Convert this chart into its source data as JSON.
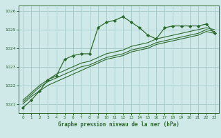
{
  "title": "Graphe pression niveau de la mer (hPa)",
  "bg_color": "#cfe8e8",
  "grid_color": "#aacccc",
  "line_color": "#2d6a2d",
  "marker_color": "#2d6a2d",
  "xlim": [
    -0.5,
    23.5
  ],
  "ylim": [
    1020.5,
    1026.3
  ],
  "yticks": [
    1021,
    1022,
    1023,
    1024,
    1025,
    1026
  ],
  "xticks": [
    0,
    1,
    2,
    3,
    4,
    5,
    6,
    7,
    8,
    9,
    10,
    11,
    12,
    13,
    14,
    15,
    16,
    17,
    18,
    19,
    20,
    21,
    22,
    23
  ],
  "series1": [
    1020.8,
    1021.2,
    1021.7,
    1022.3,
    1022.5,
    1023.4,
    1023.6,
    1023.7,
    1023.7,
    1025.1,
    1025.4,
    1025.5,
    1025.7,
    1025.4,
    1025.1,
    1024.7,
    1024.5,
    1025.1,
    1025.2,
    1025.2,
    1025.2,
    1025.2,
    1025.3,
    1024.8
  ],
  "series2": [
    1021.0,
    1021.4,
    1021.7,
    1022.0,
    1022.2,
    1022.4,
    1022.6,
    1022.8,
    1023.0,
    1023.2,
    1023.4,
    1023.5,
    1023.6,
    1023.8,
    1023.9,
    1024.0,
    1024.2,
    1024.3,
    1024.4,
    1024.5,
    1024.6,
    1024.7,
    1024.9,
    1024.8
  ],
  "series3": [
    1021.1,
    1021.5,
    1021.9,
    1022.2,
    1022.4,
    1022.6,
    1022.8,
    1023.0,
    1023.1,
    1023.3,
    1023.5,
    1023.6,
    1023.7,
    1023.9,
    1024.0,
    1024.1,
    1024.3,
    1024.4,
    1024.5,
    1024.6,
    1024.7,
    1024.8,
    1025.0,
    1024.9
  ],
  "series4": [
    1021.2,
    1021.6,
    1022.0,
    1022.3,
    1022.6,
    1022.8,
    1023.0,
    1023.2,
    1023.3,
    1023.5,
    1023.7,
    1023.8,
    1023.9,
    1024.1,
    1024.2,
    1024.3,
    1024.5,
    1024.6,
    1024.7,
    1024.8,
    1024.9,
    1025.0,
    1025.1,
    1025.0
  ]
}
